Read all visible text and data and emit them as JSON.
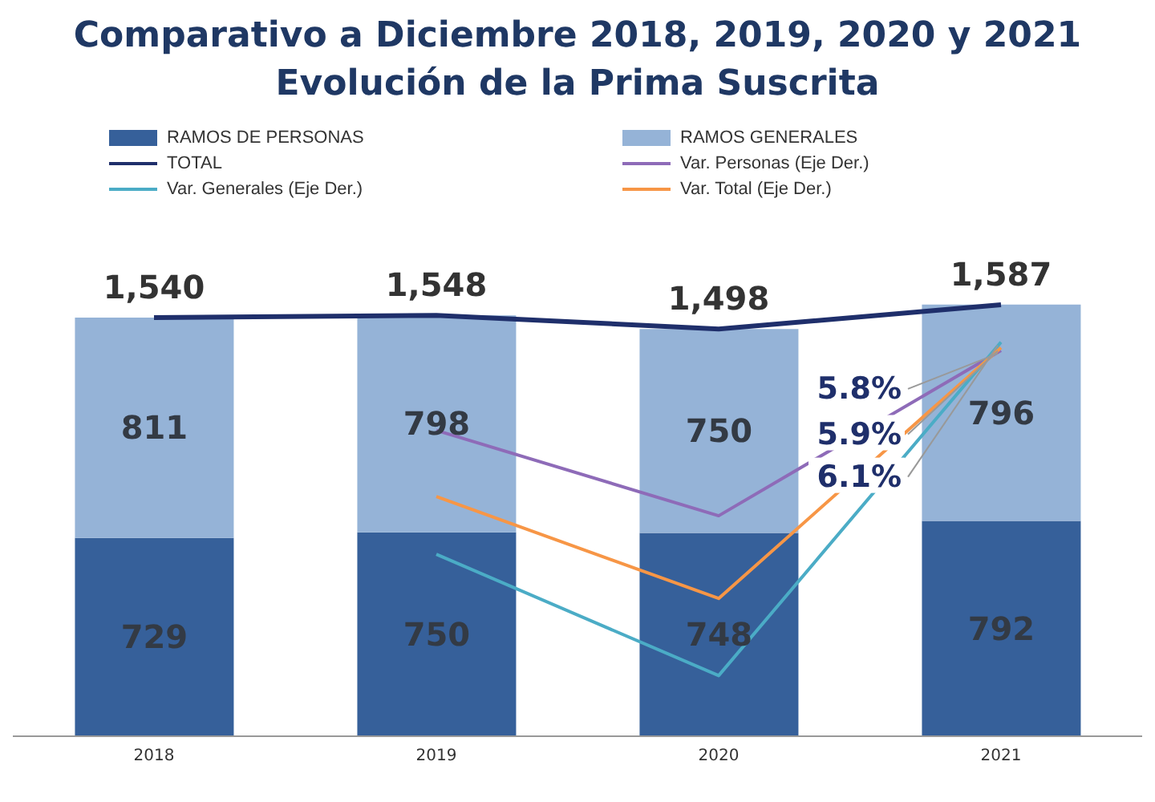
{
  "chart_data": {
    "type": "bar",
    "title": "Comparativo a Diciembre 2018, 2019, 2020 y 2021",
    "subtitle": "Evolución de la Prima Suscrita",
    "categories": [
      "2018",
      "2019",
      "2020",
      "2021"
    ],
    "stacked": true,
    "legend": "top",
    "marker": "none",
    "line_style": "solid",
    "series": [
      {
        "name": "RAMOS DE PERSONAS",
        "type": "bar",
        "color": "#36609a",
        "values": [
          729,
          750,
          748,
          792
        ],
        "value_labels": [
          "729",
          "750",
          "748",
          "792"
        ]
      },
      {
        "name": "RAMOS GENERALES",
        "type": "bar",
        "color": "#95b3d7",
        "values": [
          811,
          798,
          750,
          796
        ],
        "value_labels": [
          "811",
          "798",
          "750",
          "796"
        ]
      },
      {
        "name": "TOTAL",
        "type": "line",
        "color": "#1f2f6b",
        "values": [
          1540,
          1548,
          1498,
          1587
        ],
        "value_labels": [
          "1,540",
          "1,548",
          "1,498",
          "1,587"
        ]
      },
      {
        "name": "Var. Personas (Eje Der.)",
        "type": "line",
        "axis": "y2",
        "color": "#8e6bb8",
        "values": [
          null,
          2.9,
          -0.2,
          5.8
        ],
        "value_labels": [
          null,
          null,
          null,
          "5.8%"
        ]
      },
      {
        "name": "Var. Generales (Eje Der.)",
        "type": "line",
        "axis": "y2",
        "color": "#4bacc6",
        "values": [
          null,
          -1.6,
          -6.0,
          6.1
        ],
        "value_labels": [
          null,
          null,
          null,
          "6.1%"
        ]
      },
      {
        "name": "Var. Total  (Eje Der.)",
        "type": "line",
        "axis": "y2",
        "color": "#f79646",
        "values": [
          null,
          0.5,
          -3.2,
          5.9
        ],
        "value_labels": [
          null,
          null,
          null,
          "5.9%"
        ]
      }
    ]
  }
}
